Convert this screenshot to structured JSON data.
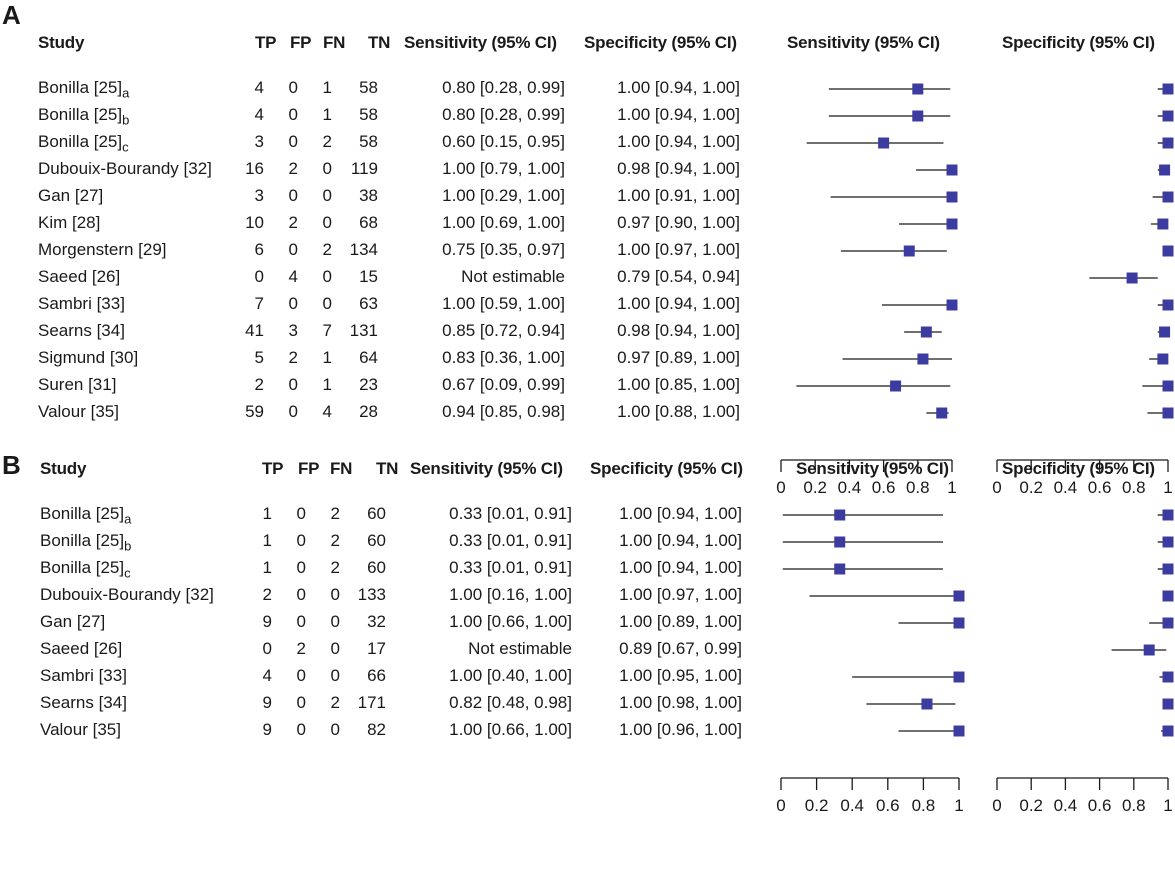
{
  "colors": {
    "marker": "#3c3ca0",
    "line": "#1a1a1a"
  },
  "chart_data": [
    {
      "panel": "A",
      "type": "forest",
      "headers": [
        "Study",
        "TP",
        "FP",
        "FN",
        "TN",
        "Sensitivity (95% CI)",
        "Specificity (95% CI)"
      ],
      "plot_titles": [
        "Sensitivity (95% CI)",
        "Specificity (95% CI)"
      ],
      "axis_ticks": [
        "0",
        "0.2",
        "0.4",
        "0.6",
        "0.8",
        "1"
      ],
      "xlim": [
        0,
        1
      ],
      "rows": [
        {
          "study": "Bonilla [25]",
          "sub": "a",
          "tp": "4",
          "fp": "0",
          "fn": "1",
          "tn": "58",
          "sens_text": "0.80 [0.28, 0.99]",
          "spec_text": "1.00 [0.94, 1.00]",
          "sens": [
            0.8,
            0.28,
            0.99
          ],
          "spec": [
            1.0,
            0.94,
            1.0
          ]
        },
        {
          "study": "Bonilla [25]",
          "sub": "b",
          "tp": "4",
          "fp": "0",
          "fn": "1",
          "tn": "58",
          "sens_text": "0.80 [0.28, 0.99]",
          "spec_text": "1.00 [0.94, 1.00]",
          "sens": [
            0.8,
            0.28,
            0.99
          ],
          "spec": [
            1.0,
            0.94,
            1.0
          ]
        },
        {
          "study": "Bonilla [25]",
          "sub": "c",
          "tp": "3",
          "fp": "0",
          "fn": "2",
          "tn": "58",
          "sens_text": "0.60 [0.15, 0.95]",
          "spec_text": "1.00 [0.94, 1.00]",
          "sens": [
            0.6,
            0.15,
            0.95
          ],
          "spec": [
            1.0,
            0.94,
            1.0
          ]
        },
        {
          "study": "Dubouix-Bourandy [32]",
          "sub": "",
          "tp": "16",
          "fp": "2",
          "fn": "0",
          "tn": "119",
          "sens_text": "1.00 [0.79, 1.00]",
          "spec_text": "0.98 [0.94, 1.00]",
          "sens": [
            1.0,
            0.79,
            1.0
          ],
          "spec": [
            0.98,
            0.94,
            1.0
          ]
        },
        {
          "study": "Gan [27]",
          "sub": "",
          "tp": "3",
          "fp": "0",
          "fn": "0",
          "tn": "38",
          "sens_text": "1.00 [0.29, 1.00]",
          "spec_text": "1.00 [0.91, 1.00]",
          "sens": [
            1.0,
            0.29,
            1.0
          ],
          "spec": [
            1.0,
            0.91,
            1.0
          ]
        },
        {
          "study": "Kim [28]",
          "sub": "",
          "tp": "10",
          "fp": "2",
          "fn": "0",
          "tn": "68",
          "sens_text": "1.00 [0.69, 1.00]",
          "spec_text": "0.97 [0.90, 1.00]",
          "sens": [
            1.0,
            0.69,
            1.0
          ],
          "spec": [
            0.97,
            0.9,
            1.0
          ]
        },
        {
          "study": "Morgenstern [29]",
          "sub": "",
          "tp": "6",
          "fp": "0",
          "fn": "2",
          "tn": "134",
          "sens_text": "0.75 [0.35, 0.97]",
          "spec_text": "1.00 [0.97, 1.00]",
          "sens": [
            0.75,
            0.35,
            0.97
          ],
          "spec": [
            1.0,
            0.97,
            1.0
          ]
        },
        {
          "study": "Saeed [26]",
          "sub": "",
          "tp": "0",
          "fp": "4",
          "fn": "0",
          "tn": "15",
          "sens_text": "Not estimable",
          "spec_text": "0.79 [0.54, 0.94]",
          "sens": null,
          "spec": [
            0.79,
            0.54,
            0.94
          ]
        },
        {
          "study": "Sambri [33]",
          "sub": "",
          "tp": "7",
          "fp": "0",
          "fn": "0",
          "tn": "63",
          "sens_text": "1.00 [0.59, 1.00]",
          "spec_text": "1.00 [0.94, 1.00]",
          "sens": [
            1.0,
            0.59,
            1.0
          ],
          "spec": [
            1.0,
            0.94,
            1.0
          ]
        },
        {
          "study": "Searns [34]",
          "sub": "",
          "tp": "41",
          "fp": "3",
          "fn": "7",
          "tn": "131",
          "sens_text": "0.85 [0.72, 0.94]",
          "spec_text": "0.98 [0.94, 1.00]",
          "sens": [
            0.85,
            0.72,
            0.94
          ],
          "spec": [
            0.98,
            0.94,
            1.0
          ]
        },
        {
          "study": "Sigmund [30]",
          "sub": "",
          "tp": "5",
          "fp": "2",
          "fn": "1",
          "tn": "64",
          "sens_text": "0.83 [0.36, 1.00]",
          "spec_text": "0.97 [0.89, 1.00]",
          "sens": [
            0.83,
            0.36,
            1.0
          ],
          "spec": [
            0.97,
            0.89,
            1.0
          ]
        },
        {
          "study": "Suren [31]",
          "sub": "",
          "tp": "2",
          "fp": "0",
          "fn": "1",
          "tn": "23",
          "sens_text": "0.67 [0.09, 0.99]",
          "spec_text": "1.00 [0.85, 1.00]",
          "sens": [
            0.67,
            0.09,
            0.99
          ],
          "spec": [
            1.0,
            0.85,
            1.0
          ]
        },
        {
          "study": "Valour [35]",
          "sub": "",
          "tp": "59",
          "fp": "0",
          "fn": "4",
          "tn": "28",
          "sens_text": "0.94 [0.85, 0.98]",
          "spec_text": "1.00 [0.88, 1.00]",
          "sens": [
            0.94,
            0.85,
            0.98
          ],
          "spec": [
            1.0,
            0.88,
            1.0
          ]
        }
      ]
    },
    {
      "panel": "B",
      "type": "forest",
      "headers": [
        "Study",
        "TP",
        "FP",
        "FN",
        "TN",
        "Sensitivity (95% CI)",
        "Specificity (95% CI)"
      ],
      "plot_titles": [
        "Sensitivity (95% CI)",
        "Specificity (95% CI)"
      ],
      "axis_ticks": [
        "0",
        "0.2",
        "0.4",
        "0.6",
        "0.8",
        "1"
      ],
      "xlim": [
        0,
        1
      ],
      "rows": [
        {
          "study": "Bonilla [25]",
          "sub": "a",
          "tp": "1",
          "fp": "0",
          "fn": "2",
          "tn": "60",
          "sens_text": "0.33 [0.01, 0.91]",
          "spec_text": "1.00 [0.94, 1.00]",
          "sens": [
            0.33,
            0.01,
            0.91
          ],
          "spec": [
            1.0,
            0.94,
            1.0
          ]
        },
        {
          "study": "Bonilla [25]",
          "sub": "b",
          "tp": "1",
          "fp": "0",
          "fn": "2",
          "tn": "60",
          "sens_text": "0.33 [0.01, 0.91]",
          "spec_text": "1.00 [0.94, 1.00]",
          "sens": [
            0.33,
            0.01,
            0.91
          ],
          "spec": [
            1.0,
            0.94,
            1.0
          ]
        },
        {
          "study": "Bonilla [25]",
          "sub": "c",
          "tp": "1",
          "fp": "0",
          "fn": "2",
          "tn": "60",
          "sens_text": "0.33 [0.01, 0.91]",
          "spec_text": "1.00 [0.94, 1.00]",
          "sens": [
            0.33,
            0.01,
            0.91
          ],
          "spec": [
            1.0,
            0.94,
            1.0
          ]
        },
        {
          "study": "Dubouix-Bourandy [32]",
          "sub": "",
          "tp": "2",
          "fp": "0",
          "fn": "0",
          "tn": "133",
          "sens_text": "1.00 [0.16, 1.00]",
          "spec_text": "1.00 [0.97, 1.00]",
          "sens": [
            1.0,
            0.16,
            1.0
          ],
          "spec": [
            1.0,
            0.97,
            1.0
          ]
        },
        {
          "study": "Gan [27]",
          "sub": "",
          "tp": "9",
          "fp": "0",
          "fn": "0",
          "tn": "32",
          "sens_text": "1.00 [0.66, 1.00]",
          "spec_text": "1.00 [0.89, 1.00]",
          "sens": [
            1.0,
            0.66,
            1.0
          ],
          "spec": [
            1.0,
            0.89,
            1.0
          ]
        },
        {
          "study": "Saeed [26]",
          "sub": "",
          "tp": "0",
          "fp": "2",
          "fn": "0",
          "tn": "17",
          "sens_text": "Not estimable",
          "spec_text": "0.89 [0.67, 0.99]",
          "sens": null,
          "spec": [
            0.89,
            0.67,
            0.99
          ]
        },
        {
          "study": "Sambri [33]",
          "sub": "",
          "tp": "4",
          "fp": "0",
          "fn": "0",
          "tn": "66",
          "sens_text": "1.00 [0.40, 1.00]",
          "spec_text": "1.00 [0.95, 1.00]",
          "sens": [
            1.0,
            0.4,
            1.0
          ],
          "spec": [
            1.0,
            0.95,
            1.0
          ]
        },
        {
          "study": "Searns [34]",
          "sub": "",
          "tp": "9",
          "fp": "0",
          "fn": "2",
          "tn": "171",
          "sens_text": "0.82 [0.48, 0.98]",
          "spec_text": "1.00 [0.98, 1.00]",
          "sens": [
            0.82,
            0.48,
            0.98
          ],
          "spec": [
            1.0,
            0.98,
            1.0
          ]
        },
        {
          "study": "Valour [35]",
          "sub": "",
          "tp": "9",
          "fp": "0",
          "fn": "0",
          "tn": "82",
          "sens_text": "1.00 [0.66, 1.00]",
          "spec_text": "1.00 [0.96, 1.00]",
          "sens": [
            1.0,
            0.66,
            1.0
          ],
          "spec": [
            1.0,
            0.96,
            1.0
          ]
        }
      ]
    }
  ]
}
